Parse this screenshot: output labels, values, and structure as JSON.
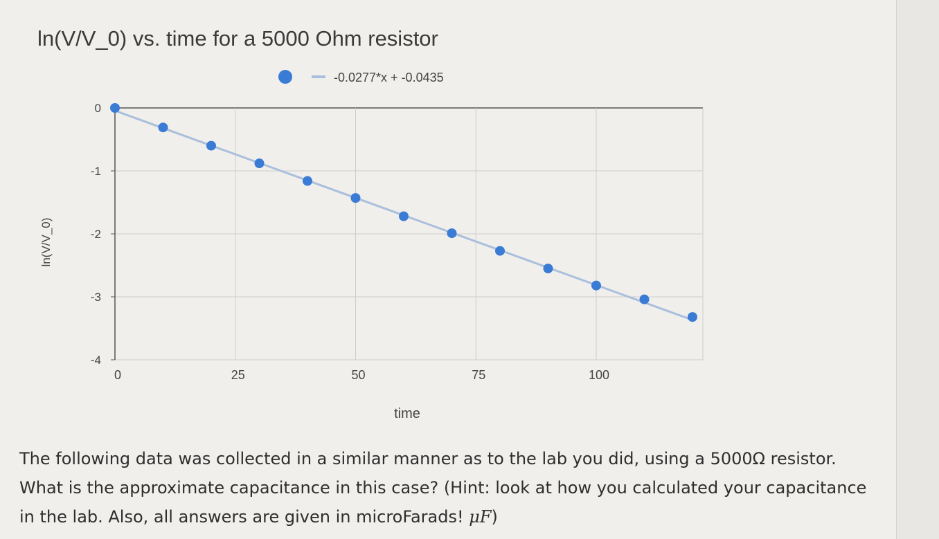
{
  "chart_data": {
    "type": "scatter",
    "title": "ln(V/V_0) vs. time for a 5000 Ohm resistor",
    "xlabel": "time",
    "ylabel": "ln(V/V_0)",
    "xlim": [
      0,
      122
    ],
    "ylim": [
      -4,
      0
    ],
    "xticks": [
      0,
      25,
      50,
      75,
      100
    ],
    "yticks": [
      0,
      -1,
      -2,
      -3,
      -4
    ],
    "grid": true,
    "legend_position": "top",
    "series": [
      {
        "type": "scatter",
        "color": "#3a7bd5",
        "x": [
          0,
          10,
          20,
          30,
          40,
          50,
          60,
          70,
          80,
          90,
          100,
          110,
          120
        ],
        "y": [
          0,
          -0.31,
          -0.6,
          -0.88,
          -1.16,
          -1.43,
          -1.72,
          -1.99,
          -2.27,
          -2.55,
          -2.82,
          -3.04,
          -3.32
        ]
      },
      {
        "type": "trendline",
        "name": "-0.0277*x + -0.0435",
        "color": "#a9bfdc",
        "slope": -0.0277,
        "intercept": -0.0435
      }
    ]
  },
  "question": {
    "text_before_unit": "The following data was collected in a similar manner as to the lab you did, using a 5000",
    "unit_symbol": "Ω",
    "text_after_unit": " resistor. What is the approximate capacitance in this case? (Hint: look at how you calculated your capacitance in the lab. Also, all answers are given in microFarads! ",
    "unit_math": "μF",
    "closing": ")"
  }
}
